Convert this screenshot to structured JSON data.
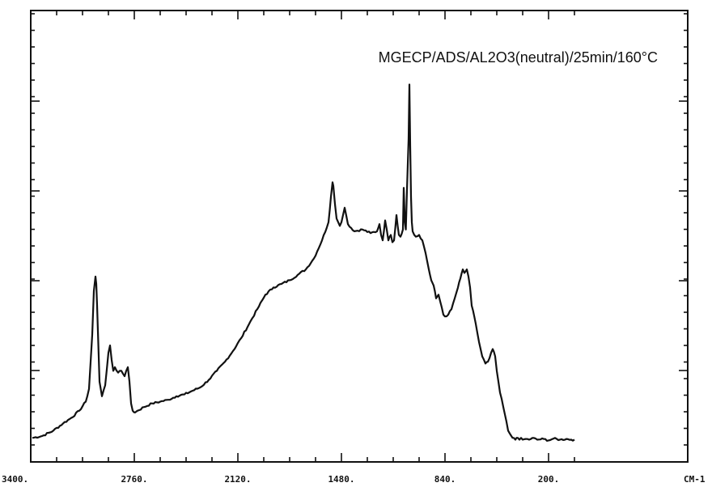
{
  "chart_data": {
    "type": "line",
    "title": "MGECP/ADS/AL2O3(neutral)/25min/160°C",
    "xunit": "CM-1",
    "xlim": [
      3400,
      0
    ],
    "ylim": [
      0,
      100
    ],
    "x_ticks": [
      {
        "value": 3400,
        "label": "3400."
      },
      {
        "value": 2760,
        "label": "2760."
      },
      {
        "value": 2120,
        "label": "2120."
      },
      {
        "value": 1480,
        "label": "1480."
      },
      {
        "value": 840,
        "label": "840."
      },
      {
        "value": 200,
        "label": "200."
      }
    ],
    "grid": false,
    "series": [
      {
        "color": "#111111",
        "x": [
          3390,
          3330,
          3260,
          3200,
          3150,
          3100,
          3060,
          3040,
          3020,
          3010,
          3000,
          2995,
          2990,
          2985,
          2975,
          2960,
          2940,
          2920,
          2910,
          2900,
          2890,
          2880,
          2860,
          2840,
          2820,
          2810,
          2800,
          2790,
          2780,
          2770,
          2755,
          2740,
          2700,
          2650,
          2600,
          2550,
          2500,
          2450,
          2400,
          2350,
          2300,
          2250,
          2200,
          2150,
          2100,
          2050,
          2000,
          1950,
          1900,
          1850,
          1800,
          1750,
          1700,
          1650,
          1600,
          1560,
          1545,
          1535,
          1530,
          1520,
          1510,
          1500,
          1490,
          1480,
          1470,
          1460,
          1440,
          1400,
          1350,
          1300,
          1260,
          1245,
          1235,
          1225,
          1210,
          1200,
          1190,
          1175,
          1165,
          1155,
          1140,
          1125,
          1115,
          1100,
          1095,
          1088,
          1082,
          1075,
          1065,
          1060,
          1055,
          1050,
          1045,
          1040,
          1030,
          1020,
          1000,
          980,
          960,
          940,
          925,
          910,
          895,
          880,
          860,
          850,
          840,
          820,
          800,
          780,
          760,
          745,
          730,
          720,
          705,
          695,
          685,
          675,
          650,
          630,
          610,
          590,
          575,
          565,
          555,
          545,
          530,
          520,
          500,
          470,
          450,
          430,
          415,
          405,
          390,
          380,
          370,
          360,
          340,
          320,
          300,
          270,
          230,
          200,
          170,
          130,
          90,
          60,
          40
        ],
        "y": [
          1.5,
          2.0,
          3.5,
          5.5,
          7.0,
          9.0,
          11.5,
          15.0,
          30.0,
          42.0,
          46.0,
          44.0,
          38.0,
          31.0,
          17.0,
          13.0,
          16.0,
          25.0,
          27.0,
          23.0,
          20.0,
          21.0,
          19.5,
          20.0,
          18.5,
          20.0,
          21.0,
          17.0,
          11.0,
          9.0,
          8.5,
          9.0,
          10.0,
          11.0,
          11.5,
          12.0,
          13.0,
          13.5,
          14.5,
          15.5,
          17.5,
          20.0,
          22.5,
          25.5,
          29.0,
          33.0,
          37.0,
          41.0,
          43.0,
          44.0,
          45.0,
          46.5,
          48.0,
          51.0,
          56.0,
          61.0,
          68.0,
          72.0,
          71.0,
          66.0,
          62.0,
          61.0,
          60.0,
          61.0,
          63.0,
          65.0,
          60.5,
          58.5,
          59.0,
          58.0,
          58.5,
          60.5,
          57.5,
          56.0,
          61.5,
          59.0,
          56.0,
          57.5,
          55.5,
          56.0,
          63.0,
          57.5,
          57.0,
          59.0,
          70.5,
          61.0,
          59.0,
          70.0,
          84.0,
          99.0,
          82.0,
          68.0,
          61.0,
          58.5,
          57.5,
          57.0,
          57.5,
          56.0,
          52.5,
          48.0,
          45.0,
          43.5,
          40.0,
          41.0,
          37.5,
          35.5,
          35.0,
          35.5,
          37.0,
          40.0,
          43.0,
          45.5,
          48.0,
          47.0,
          48.0,
          46.0,
          43.0,
          38.0,
          33.0,
          28.0,
          24.0,
          22.0,
          22.5,
          23.5,
          25.0,
          26.0,
          24.0,
          20.0,
          14.0,
          8.0,
          3.5,
          2.0,
          1.5,
          1.0,
          1.5,
          1.0,
          1.5,
          1.0,
          1.2,
          1.0,
          1.5,
          1.0,
          1.2,
          0.8,
          1.3,
          1.0,
          1.2,
          1.0,
          1.0
        ]
      }
    ]
  }
}
